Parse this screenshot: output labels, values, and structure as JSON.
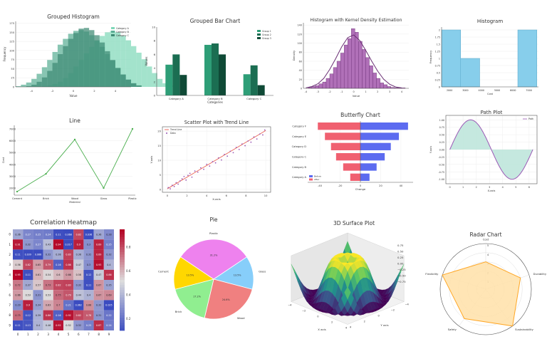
{
  "chart_data": [
    {
      "id": "grouped-histogram",
      "type": "histogram",
      "title": "Grouped Histogram",
      "xlabel": "Value",
      "ylabel": "Frequency",
      "xticks": [
        -4,
        -2,
        0,
        2,
        4
      ],
      "yticks": [
        0,
        25,
        50,
        75,
        100,
        125,
        150,
        175
      ],
      "xlim": [
        -5.5,
        5.5
      ],
      "ylim": [
        0,
        180
      ],
      "legend": [
        "Category A",
        "Category B",
        "Category C"
      ],
      "bin_start": -5.5,
      "bin_width": 0.5,
      "series": [
        {
          "name": "Category A",
          "color": "#7fd8b8",
          "values": [
            0,
            0,
            0,
            0,
            0,
            2,
            4,
            8,
            14,
            24,
            38,
            56,
            74,
            92,
            110,
            126,
            140,
            150,
            154,
            150,
            140,
            128,
            112,
            94,
            76,
            56,
            38,
            22,
            10,
            4,
            0,
            0,
            0,
            0,
            0,
            0
          ]
        },
        {
          "name": "Category B",
          "color": "#5aae94",
          "values": [
            2,
            6,
            12,
            22,
            36,
            54,
            74,
            96,
            116,
            132,
            146,
            154,
            156,
            152,
            142,
            128,
            110,
            90,
            72,
            52,
            34,
            20,
            10,
            4,
            0,
            0,
            0,
            0,
            0,
            0,
            0,
            0,
            0,
            0,
            0,
            0
          ]
        },
        {
          "name": "Category C",
          "color": "#3e8b74",
          "values": [
            0,
            0,
            2,
            6,
            14,
            26,
            44,
            66,
            90,
            112,
            132,
            148,
            160,
            162,
            156,
            142,
            122,
            98,
            74,
            52,
            34,
            20,
            10,
            4,
            0,
            0,
            0,
            0,
            0,
            0,
            0,
            0,
            0,
            0,
            0,
            0
          ]
        }
      ]
    },
    {
      "id": "grouped-bar",
      "type": "bar",
      "title": "Grouped Bar Chart",
      "xlabel": "Categories",
      "ylabel": "Values",
      "categories": [
        "Category A",
        "Category B",
        "Category C"
      ],
      "ylim": [
        0,
        10
      ],
      "yticks": [
        0,
        2,
        4,
        6,
        8,
        10
      ],
      "series": [
        {
          "name": "Group 1",
          "color": "#2e9e77",
          "values": [
            4.5,
            7.4,
            3.1
          ]
        },
        {
          "name": "Group 2",
          "color": "#1b6e52",
          "values": [
            6.0,
            7.6,
            4.4
          ]
        },
        {
          "name": "Group 3",
          "color": "#0f4a36",
          "values": [
            3.0,
            6.0,
            1.5
          ]
        }
      ]
    },
    {
      "id": "histogram-kde",
      "type": "histogram",
      "title": "Histogram with Kernel Density Estimation",
      "xlabel": "Value",
      "ylabel": "Density",
      "xticks": [
        -4,
        -3,
        -2,
        -1,
        0,
        1,
        2,
        3,
        4
      ],
      "yticks": [
        0,
        20,
        40,
        60,
        80,
        100,
        120,
        140
      ],
      "xlim": [
        -4.2,
        4.6
      ],
      "ylim": [
        0,
        145
      ],
      "bar_color": "#b070b8",
      "edge_color": "#6a2f74",
      "line_color": "#6a2f74",
      "bin_start": -3.8,
      "bin_width": 0.3,
      "values": [
        2,
        4,
        6,
        10,
        14,
        22,
        32,
        46,
        60,
        78,
        96,
        110,
        132,
        124,
        104,
        86,
        68,
        50,
        34,
        22,
        12,
        8,
        4,
        2,
        1,
        1,
        1
      ],
      "kde": [
        [
          -4.0,
          1
        ],
        [
          -3.5,
          4
        ],
        [
          -3.0,
          10
        ],
        [
          -2.5,
          22
        ],
        [
          -2.0,
          42
        ],
        [
          -1.5,
          66
        ],
        [
          -1.0,
          92
        ],
        [
          -0.5,
          112
        ],
        [
          0.0,
          118
        ],
        [
          0.5,
          106
        ],
        [
          1.0,
          84
        ],
        [
          1.5,
          60
        ],
        [
          2.0,
          38
        ],
        [
          2.5,
          20
        ],
        [
          3.0,
          9
        ],
        [
          3.5,
          3
        ],
        [
          4.0,
          1
        ]
      ]
    },
    {
      "id": "histogram",
      "type": "histogram",
      "title": "Histogram",
      "xlabel": "Cost",
      "ylabel": "Frequency",
      "xticks": [
        2000,
        3000,
        4000,
        5000,
        6000,
        7000
      ],
      "yticks": [
        0,
        0.25,
        0.5,
        0.75,
        1.0,
        1.25,
        1.5,
        1.75,
        2.0
      ],
      "xlim": [
        1500,
        7600
      ],
      "ylim": [
        0,
        2.1
      ],
      "color": "#87ceeb",
      "edge_color": "#5aa7c8",
      "bins": [
        [
          1500,
          2700,
          2
        ],
        [
          2700,
          3900,
          1
        ],
        [
          3900,
          5100,
          0
        ],
        [
          5100,
          6300,
          0
        ],
        [
          6300,
          7500,
          2
        ]
      ]
    },
    {
      "id": "line",
      "type": "line",
      "title": "Line",
      "xlabel": "Material",
      "ylabel": "Cost",
      "color": "#4caf50",
      "categories": [
        "Cement",
        "Brick",
        "Wood",
        "Glass",
        "Plastic"
      ],
      "values": [
        1700,
        3200,
        6100,
        2000,
        7000
      ],
      "yticks": [
        2000,
        3000,
        4000,
        5000,
        6000,
        7000
      ],
      "ylim": [
        1400,
        7300
      ]
    },
    {
      "id": "scatter-trend",
      "type": "scatter",
      "title": "Scatter Plot with Trend Line",
      "xlabel": "X-axis",
      "ylabel": "Y-axis",
      "legend": [
        "Trend Line",
        "Data"
      ],
      "point_color": "#9b59b6",
      "line_color": "#e74c3c",
      "xlim": [
        -0.5,
        10.5
      ],
      "ylim": [
        -1,
        21.5
      ],
      "xticks": [
        0,
        2,
        4,
        6,
        8,
        10
      ],
      "yticks": [
        0,
        5,
        10,
        15,
        20
      ],
      "trend": [
        [
          0,
          0.2
        ],
        [
          10,
          20.2
        ]
      ],
      "points": [
        [
          0.1,
          0.6
        ],
        [
          0.3,
          0.2
        ],
        [
          0.5,
          1.4
        ],
        [
          0.7,
          1.0
        ],
        [
          0.9,
          2.3
        ],
        [
          1.1,
          1.8
        ],
        [
          1.3,
          2.9
        ],
        [
          1.5,
          3.6
        ],
        [
          1.7,
          4.4
        ],
        [
          1.9,
          3.2
        ],
        [
          2.1,
          4.8
        ],
        [
          2.3,
          5.5
        ],
        [
          2.5,
          4.2
        ],
        [
          2.8,
          6.3
        ],
        [
          3.1,
          5.9
        ],
        [
          3.4,
          7.4
        ],
        [
          3.7,
          6.9
        ],
        [
          4.0,
          8.6
        ],
        [
          4.3,
          8.0
        ],
        [
          4.6,
          9.5
        ],
        [
          4.9,
          9.1
        ],
        [
          5.2,
          10.8
        ],
        [
          5.5,
          10.1
        ],
        [
          5.8,
          12.0
        ],
        [
          6.1,
          11.4
        ],
        [
          6.4,
          13.1
        ],
        [
          6.7,
          12.6
        ],
        [
          7.0,
          14.4
        ],
        [
          7.3,
          13.7
        ],
        [
          7.6,
          15.6
        ],
        [
          7.9,
          15.0
        ],
        [
          8.2,
          16.6
        ],
        [
          8.5,
          16.2
        ],
        [
          8.8,
          18.0
        ],
        [
          9.1,
          17.3
        ],
        [
          9.4,
          19.0
        ],
        [
          9.7,
          18.7
        ],
        [
          9.9,
          20.4
        ]
      ]
    },
    {
      "id": "butterfly",
      "type": "bar",
      "title": "Butterfly Chart",
      "xlabel": "Change",
      "categories": [
        "Category F",
        "Category E",
        "Category D",
        "Category C",
        "Category B",
        "Category A"
      ],
      "legend": [
        "Before",
        "After"
      ],
      "xlim": [
        -52,
        52
      ],
      "xticks": [
        -40,
        -20,
        0,
        20,
        40
      ],
      "series": [
        {
          "name": "Before",
          "color": "#5c6bf0",
          "values": [
            47,
            38,
            30,
            24,
            16,
            9
          ]
        },
        {
          "name": "After",
          "color": "#f06070",
          "values": [
            -42,
            -35,
            -29,
            -24,
            -17,
            -10
          ]
        }
      ]
    },
    {
      "id": "path-plot",
      "type": "area",
      "title": "Path Plot",
      "xlabel": "X-axis",
      "ylabel": "Y-axis",
      "legend": [
        "Path"
      ],
      "line_color": "#9b59b6",
      "fill_color": "#bfe6dc",
      "xlim": [
        -0.3,
        6.6
      ],
      "ylim": [
        -1.15,
        1.15
      ],
      "xticks": [
        0,
        1,
        2,
        3,
        4,
        5,
        6
      ],
      "yticks": [
        -1.0,
        -0.75,
        -0.5,
        -0.25,
        0.0,
        0.25,
        0.5,
        0.75,
        1.0
      ]
    },
    {
      "id": "correlation-heatmap",
      "type": "heatmap",
      "title": "Correlation Heatmap",
      "labels": [
        "0",
        "1",
        "2",
        "3",
        "4",
        "5",
        "6",
        "7",
        "8",
        "9"
      ],
      "colorbar_ticks": [
        0.2,
        0.4,
        0.6,
        0.8
      ],
      "vmin": 0.1,
      "vmax": 0.95,
      "matrix": [
        [
          0.36,
          0.27,
          0.25,
          0.24,
          0.11,
          0.068,
          0.82,
          0.036,
          0.36,
          0.28
        ],
        [
          0.91,
          0.32,
          0.27,
          0.43,
          0.94,
          0.017,
          0.9,
          0.3,
          0.89,
          0.25
        ],
        [
          0.11,
          0.039,
          0.088,
          0.32,
          0.38,
          0.83,
          0.38,
          0.32,
          0.89,
          0.32
        ],
        [
          0.56,
          0.82,
          0.65,
          0.79,
          0.16,
          0.86,
          0.47,
          0.3,
          0.93,
          0.4
        ],
        [
          0.95,
          0.11,
          0.61,
          0.54,
          0.6,
          0.66,
          0.58,
          0.12,
          0.47,
          0.86
        ],
        [
          0.72,
          0.37,
          0.57,
          0.73,
          0.82,
          0.83,
          0.32,
          0.11,
          0.67,
          0.35
        ],
        [
          0.66,
          0.53,
          0.31,
          0.53,
          0.75,
          0.79,
          0.44,
          0.4,
          0.67,
          0.69
        ],
        [
          0.29,
          0.9,
          0.34,
          0.63,
          0.7,
          0.21,
          0.062,
          0.68,
          0.32,
          0.025
        ],
        [
          0.75,
          0.12,
          0.39,
          0.86,
          0.16,
          0.92,
          0.82,
          0.78,
          0.31,
          0.22
        ],
        [
          0.11,
          0.13,
          0.4,
          0.46,
          0.92,
          0.52,
          0.32,
          0.25,
          0.87,
          0.24
        ]
      ]
    },
    {
      "id": "pie",
      "type": "pie",
      "title": "Pie",
      "labels": [
        "Plastic",
        "Glass",
        "Wood",
        "Brick",
        "Cement"
      ],
      "values": [
        31.2,
        13.5,
        24.6,
        17.2,
        13.5
      ],
      "colors": [
        "#ee82ee",
        "#87cefa",
        "#f08080",
        "#90ee90",
        "#ffd700"
      ],
      "pct_labels": [
        "31.2%",
        "13.5%",
        "24.6%",
        "17.2%",
        "13.5%"
      ]
    },
    {
      "id": "surface-3d",
      "type": "surface",
      "title": "3D Surface Plot",
      "xlabel": "X axis",
      "ylabel": "Y axis",
      "colorbar_ticks": [
        "0.75",
        "0.50",
        "0.25",
        "0.00",
        "−0.25",
        "−0.50",
        "−0.75"
      ],
      "xticks": [
        "−4",
        "−2",
        "0",
        "2",
        "4"
      ],
      "yticks": [
        "−4",
        "−2",
        "0",
        "2",
        "4"
      ]
    },
    {
      "id": "radar",
      "type": "radar",
      "title": "Radar Chart",
      "axes": [
        "Cost",
        "Durability",
        "Sustainability",
        "Safety",
        "Flexibility"
      ],
      "values": [
        3,
        4,
        5,
        4,
        5
      ],
      "rmax": 5,
      "rticks": [
        1,
        2,
        3,
        4,
        5
      ],
      "color": "#ffa726",
      "fill": "#ffe0a8"
    }
  ]
}
